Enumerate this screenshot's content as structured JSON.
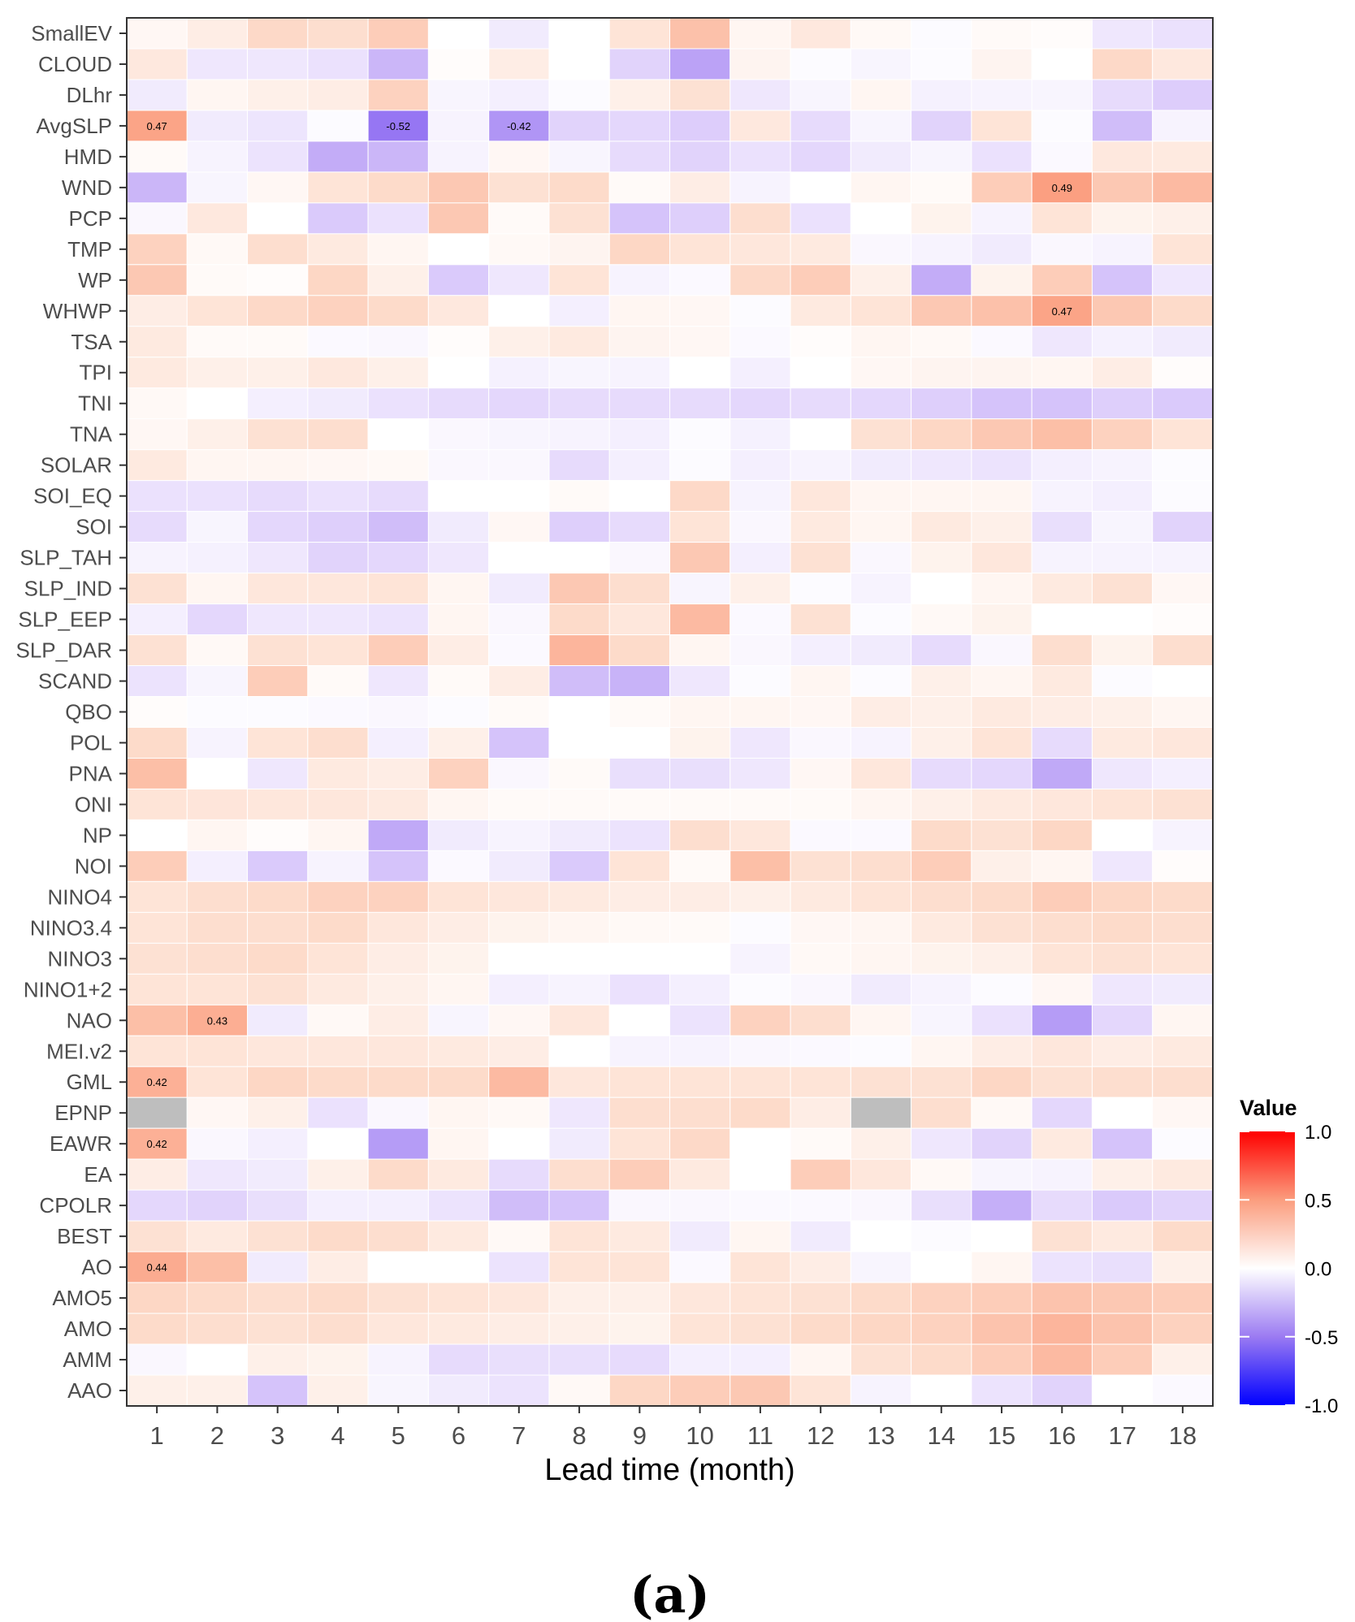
{
  "chart_data": {
    "type": "heatmap",
    "xlabel": "Lead time (month)",
    "panel_label": "(a)",
    "legend_title": "Value",
    "legend_ticks": [
      1.0,
      0.5,
      0.0,
      -0.5,
      -1.0
    ],
    "legend_tick_labels": [
      "1.0",
      "0.5",
      "0.0",
      "-0.5",
      "-1.0"
    ],
    "value_range": [
      -1.0,
      1.0
    ],
    "colors": {
      "low": "#0000ff",
      "mid": "#ffffff",
      "high": "#ff0000",
      "na": "#bebebe"
    },
    "x": [
      1,
      2,
      3,
      4,
      5,
      6,
      7,
      8,
      9,
      10,
      11,
      12,
      13,
      14,
      15,
      16,
      17,
      18
    ],
    "y": [
      "SmallEV",
      "CLOUD",
      "DLhr",
      "AvgSLP",
      "HMD",
      "WND",
      "PCP",
      "TMP",
      "WP",
      "WHWP",
      "TSA",
      "TPI",
      "TNI",
      "TNA",
      "SOLAR",
      "SOI_EQ",
      "SOI",
      "SLP_TAH",
      "SLP_IND",
      "SLP_EEP",
      "SLP_DAR",
      "SCAND",
      "QBO",
      "POL",
      "PNA",
      "ONI",
      "NP",
      "NOI",
      "NINO4",
      "NINO3.4",
      "NINO3",
      "NINO1+2",
      "NAO",
      "MEI.v2",
      "GML",
      "EPNP",
      "EAWR",
      "EA",
      "CPOLR",
      "BEST",
      "AO",
      "AMO5",
      "AMO",
      "AMM",
      "AAO"
    ],
    "values": [
      [
        0.05,
        0.12,
        0.25,
        0.22,
        0.3,
        0.0,
        -0.1,
        0.0,
        0.18,
        0.35,
        0.06,
        0.15,
        0.04,
        -0.02,
        0.03,
        0.02,
        -0.12,
        -0.15
      ],
      [
        0.15,
        -0.12,
        -0.12,
        -0.15,
        -0.32,
        0.02,
        0.12,
        0.0,
        -0.22,
        -0.38,
        0.07,
        -0.02,
        -0.05,
        -0.02,
        0.07,
        0.0,
        0.25,
        0.15
      ],
      [
        -0.1,
        0.06,
        0.1,
        0.12,
        0.28,
        -0.05,
        -0.08,
        -0.02,
        0.1,
        0.2,
        -0.12,
        -0.05,
        0.06,
        -0.07,
        -0.06,
        -0.05,
        -0.18,
        -0.25
      ],
      [
        0.47,
        -0.1,
        -0.13,
        -0.02,
        -0.52,
        -0.06,
        -0.42,
        -0.22,
        -0.2,
        -0.25,
        0.15,
        -0.18,
        -0.05,
        -0.22,
        0.18,
        -0.02,
        -0.3,
        -0.06
      ],
      [
        0.03,
        -0.06,
        -0.14,
        -0.35,
        -0.32,
        -0.06,
        0.05,
        -0.05,
        -0.18,
        -0.22,
        -0.15,
        -0.2,
        -0.1,
        -0.05,
        -0.15,
        -0.03,
        0.15,
        0.14
      ],
      [
        -0.32,
        -0.05,
        0.05,
        0.18,
        0.24,
        0.32,
        0.2,
        0.24,
        0.03,
        0.12,
        -0.06,
        0.0,
        0.06,
        0.03,
        0.3,
        0.49,
        0.32,
        0.38
      ],
      [
        -0.04,
        0.15,
        0.0,
        -0.26,
        -0.15,
        0.32,
        0.03,
        0.2,
        -0.28,
        -0.24,
        0.22,
        -0.15,
        0.0,
        0.08,
        -0.06,
        0.18,
        0.08,
        0.1
      ],
      [
        0.28,
        0.04,
        0.22,
        0.14,
        0.06,
        0.0,
        0.04,
        0.07,
        0.26,
        0.18,
        0.16,
        0.14,
        -0.04,
        -0.06,
        -0.1,
        -0.04,
        -0.06,
        0.18
      ],
      [
        0.32,
        0.03,
        0.02,
        0.26,
        0.1,
        -0.26,
        -0.12,
        0.18,
        -0.06,
        -0.03,
        0.25,
        0.3,
        0.1,
        -0.35,
        0.08,
        0.3,
        -0.28,
        -0.12
      ],
      [
        0.12,
        0.18,
        0.25,
        0.28,
        0.24,
        0.15,
        0.0,
        -0.08,
        0.06,
        0.05,
        -0.02,
        0.14,
        0.18,
        0.32,
        0.35,
        0.47,
        0.32,
        0.24
      ],
      [
        0.14,
        0.03,
        0.03,
        -0.03,
        -0.04,
        0.02,
        0.1,
        0.14,
        0.07,
        0.05,
        -0.03,
        0.02,
        0.06,
        0.04,
        -0.03,
        -0.12,
        -0.07,
        -0.1
      ],
      [
        0.14,
        0.1,
        0.1,
        0.15,
        0.1,
        0.0,
        -0.07,
        -0.05,
        -0.06,
        0.0,
        -0.08,
        0.0,
        0.05,
        0.07,
        0.07,
        0.06,
        0.12,
        0.02
      ],
      [
        0.04,
        0.0,
        -0.08,
        -0.1,
        -0.15,
        -0.18,
        -0.2,
        -0.18,
        -0.18,
        -0.18,
        -0.2,
        -0.18,
        -0.2,
        -0.24,
        -0.28,
        -0.28,
        -0.24,
        -0.26
      ],
      [
        0.05,
        0.1,
        0.2,
        0.22,
        0.0,
        -0.04,
        -0.05,
        -0.06,
        -0.08,
        -0.02,
        -0.07,
        0.0,
        0.2,
        0.26,
        0.32,
        0.36,
        0.28,
        0.18
      ],
      [
        0.14,
        0.06,
        0.06,
        0.05,
        0.04,
        -0.04,
        -0.04,
        -0.18,
        -0.08,
        -0.02,
        -0.08,
        -0.06,
        -0.1,
        -0.12,
        -0.14,
        -0.08,
        -0.06,
        -0.02
      ],
      [
        -0.15,
        -0.15,
        -0.18,
        -0.15,
        -0.18,
        0.0,
        0.0,
        0.03,
        0.0,
        0.25,
        -0.06,
        0.16,
        0.06,
        0.06,
        0.06,
        -0.06,
        -0.08,
        -0.02
      ],
      [
        -0.18,
        -0.05,
        -0.2,
        -0.24,
        -0.3,
        -0.1,
        0.05,
        -0.24,
        -0.18,
        0.18,
        -0.04,
        0.14,
        0.06,
        0.14,
        0.1,
        -0.16,
        -0.05,
        -0.22
      ],
      [
        -0.06,
        -0.07,
        -0.12,
        -0.22,
        -0.2,
        -0.12,
        0.0,
        0.0,
        -0.04,
        0.32,
        -0.08,
        0.2,
        -0.04,
        0.08,
        0.16,
        -0.06,
        -0.06,
        -0.06
      ],
      [
        0.2,
        0.06,
        0.16,
        0.16,
        0.18,
        0.06,
        -0.1,
        0.32,
        0.22,
        -0.05,
        0.1,
        -0.02,
        -0.06,
        0.0,
        0.06,
        0.14,
        0.2,
        0.05
      ],
      [
        -0.08,
        -0.2,
        -0.12,
        -0.12,
        -0.14,
        0.06,
        -0.04,
        0.24,
        0.16,
        0.38,
        -0.03,
        0.2,
        -0.02,
        0.04,
        0.08,
        0.0,
        0.0,
        0.02
      ],
      [
        0.2,
        0.04,
        0.2,
        0.18,
        0.3,
        0.12,
        -0.03,
        0.4,
        0.24,
        0.06,
        -0.04,
        -0.08,
        -0.1,
        -0.18,
        -0.04,
        0.22,
        0.08,
        0.22
      ],
      [
        -0.14,
        -0.05,
        0.3,
        0.03,
        -0.12,
        0.03,
        0.12,
        -0.3,
        -0.33,
        -0.12,
        -0.02,
        0.06,
        -0.02,
        0.1,
        0.06,
        0.14,
        -0.02,
        0.0
      ],
      [
        0.02,
        -0.02,
        -0.02,
        -0.03,
        -0.04,
        -0.02,
        0.03,
        0.0,
        0.03,
        0.06,
        0.06,
        0.05,
        0.12,
        0.1,
        0.14,
        0.12,
        0.1,
        0.06
      ],
      [
        0.24,
        -0.06,
        0.18,
        0.22,
        -0.08,
        0.1,
        -0.28,
        0.0,
        0.0,
        0.08,
        -0.12,
        -0.04,
        -0.06,
        0.1,
        0.18,
        -0.18,
        0.14,
        0.16
      ],
      [
        0.36,
        0.0,
        -0.12,
        0.14,
        0.12,
        0.28,
        -0.04,
        0.03,
        -0.16,
        -0.16,
        -0.12,
        0.05,
        0.16,
        -0.18,
        -0.2,
        -0.36,
        -0.12,
        -0.08
      ],
      [
        0.18,
        0.17,
        0.16,
        0.16,
        0.14,
        0.06,
        0.03,
        0.03,
        0.03,
        0.03,
        0.03,
        0.03,
        0.06,
        0.1,
        0.14,
        0.16,
        0.18,
        0.2
      ],
      [
        0.0,
        0.06,
        0.02,
        0.06,
        -0.36,
        -0.1,
        -0.06,
        -0.1,
        -0.14,
        0.22,
        0.16,
        -0.03,
        -0.03,
        0.24,
        0.2,
        0.26,
        0.0,
        -0.06
      ],
      [
        0.3,
        -0.08,
        -0.26,
        -0.06,
        -0.28,
        -0.03,
        -0.1,
        -0.26,
        0.18,
        0.03,
        0.36,
        0.2,
        0.22,
        0.3,
        0.1,
        0.06,
        -0.12,
        0.02
      ],
      [
        0.18,
        0.22,
        0.24,
        0.28,
        0.28,
        0.18,
        0.16,
        0.14,
        0.12,
        0.12,
        0.1,
        0.14,
        0.18,
        0.22,
        0.24,
        0.3,
        0.26,
        0.24
      ],
      [
        0.18,
        0.22,
        0.22,
        0.24,
        0.16,
        0.12,
        0.08,
        0.06,
        0.04,
        0.03,
        -0.02,
        0.05,
        0.06,
        0.14,
        0.2,
        0.22,
        0.24,
        0.22
      ],
      [
        0.2,
        0.22,
        0.24,
        0.18,
        0.12,
        0.08,
        0.0,
        0.0,
        0.0,
        0.0,
        -0.06,
        0.04,
        0.06,
        0.08,
        0.1,
        0.18,
        0.2,
        0.18
      ],
      [
        0.18,
        0.18,
        0.2,
        0.14,
        0.1,
        0.06,
        -0.08,
        -0.06,
        -0.15,
        -0.08,
        -0.02,
        -0.04,
        -0.1,
        -0.06,
        -0.02,
        0.05,
        -0.12,
        -0.1
      ],
      [
        0.36,
        0.43,
        -0.1,
        0.04,
        0.12,
        -0.05,
        0.05,
        0.16,
        0.0,
        -0.14,
        0.28,
        0.22,
        0.06,
        -0.05,
        -0.15,
        -0.4,
        -0.2,
        0.06
      ],
      [
        0.18,
        0.18,
        0.16,
        0.16,
        0.16,
        0.14,
        0.12,
        0.0,
        -0.06,
        -0.06,
        -0.04,
        -0.03,
        -0.02,
        0.06,
        0.12,
        0.16,
        0.12,
        0.14
      ],
      [
        0.42,
        0.18,
        0.26,
        0.24,
        0.24,
        0.24,
        0.38,
        0.16,
        0.18,
        0.18,
        0.18,
        0.18,
        0.2,
        0.2,
        0.26,
        0.2,
        0.22,
        0.22
      ],
      [
        null,
        0.05,
        0.1,
        -0.15,
        -0.04,
        0.06,
        0.04,
        -0.12,
        0.22,
        0.22,
        0.24,
        0.12,
        null,
        0.22,
        0.04,
        -0.2,
        0.0,
        0.05
      ],
      [
        0.42,
        -0.04,
        -0.08,
        0.0,
        -0.4,
        0.06,
        0.0,
        -0.1,
        0.18,
        0.25,
        0.0,
        0.03,
        0.1,
        -0.12,
        -0.22,
        0.14,
        -0.28,
        -0.02
      ],
      [
        0.12,
        -0.12,
        -0.1,
        0.1,
        0.24,
        0.14,
        -0.18,
        0.22,
        0.3,
        0.14,
        0.0,
        0.3,
        0.16,
        0.04,
        -0.05,
        -0.06,
        0.1,
        0.14
      ],
      [
        -0.2,
        -0.22,
        -0.16,
        -0.08,
        -0.08,
        -0.14,
        -0.3,
        -0.28,
        -0.04,
        -0.04,
        -0.03,
        -0.03,
        -0.04,
        -0.16,
        -0.34,
        -0.18,
        -0.26,
        -0.22
      ],
      [
        0.2,
        0.14,
        0.2,
        0.24,
        0.22,
        0.14,
        0.04,
        0.18,
        0.14,
        -0.1,
        0.06,
        -0.1,
        0.0,
        -0.02,
        0.0,
        0.2,
        0.14,
        0.24
      ],
      [
        0.44,
        0.36,
        -0.1,
        0.12,
        0.0,
        0.0,
        -0.14,
        0.18,
        0.18,
        -0.03,
        0.18,
        0.12,
        -0.05,
        0.0,
        0.06,
        -0.14,
        -0.16,
        0.1
      ],
      [
        0.26,
        0.24,
        0.22,
        0.24,
        0.2,
        0.18,
        0.16,
        0.1,
        0.1,
        0.16,
        0.18,
        0.2,
        0.24,
        0.28,
        0.3,
        0.34,
        0.32,
        0.3
      ],
      [
        0.24,
        0.22,
        0.2,
        0.22,
        0.16,
        0.14,
        0.12,
        0.1,
        0.08,
        0.18,
        0.2,
        0.24,
        0.26,
        0.28,
        0.34,
        0.4,
        0.34,
        0.28
      ],
      [
        -0.04,
        0.0,
        0.1,
        0.08,
        -0.06,
        -0.18,
        -0.16,
        -0.16,
        -0.18,
        -0.08,
        -0.08,
        0.06,
        0.2,
        0.24,
        0.3,
        0.38,
        0.3,
        0.1
      ],
      [
        0.1,
        0.1,
        -0.28,
        0.1,
        -0.05,
        -0.1,
        -0.14,
        0.04,
        0.26,
        0.3,
        0.32,
        0.18,
        -0.06,
        0.0,
        -0.14,
        -0.22,
        0.0,
        -0.03
      ]
    ],
    "labeled_cells": [
      {
        "row": "AvgSLP",
        "col": 1,
        "text": "0.47"
      },
      {
        "row": "AvgSLP",
        "col": 5,
        "text": "-0.52"
      },
      {
        "row": "AvgSLP",
        "col": 7,
        "text": "-0.42"
      },
      {
        "row": "WND",
        "col": 16,
        "text": "0.49"
      },
      {
        "row": "WHWP",
        "col": 16,
        "text": "0.47"
      },
      {
        "row": "NAO",
        "col": 2,
        "text": "0.43"
      },
      {
        "row": "GML",
        "col": 1,
        "text": "0.42"
      },
      {
        "row": "EAWR",
        "col": 1,
        "text": "0.42"
      },
      {
        "row": "AO",
        "col": 1,
        "text": "0.44"
      }
    ]
  }
}
